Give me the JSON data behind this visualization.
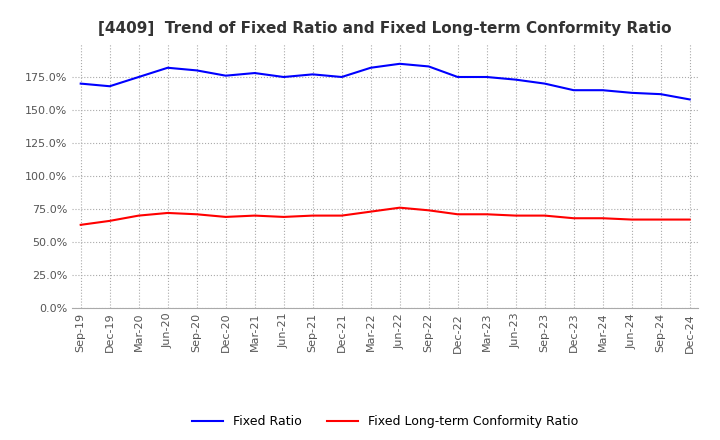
{
  "title": "[4409]  Trend of Fixed Ratio and Fixed Long-term Conformity Ratio",
  "x_labels": [
    "Sep-19",
    "Dec-19",
    "Mar-20",
    "Jun-20",
    "Sep-20",
    "Dec-20",
    "Mar-21",
    "Jun-21",
    "Sep-21",
    "Dec-21",
    "Mar-22",
    "Jun-22",
    "Sep-22",
    "Dec-22",
    "Mar-23",
    "Jun-23",
    "Sep-23",
    "Dec-23",
    "Mar-24",
    "Jun-24",
    "Sep-24",
    "Dec-24"
  ],
  "fixed_ratio": [
    170,
    168,
    175,
    182,
    180,
    176,
    178,
    175,
    177,
    175,
    182,
    185,
    183,
    175,
    175,
    173,
    170,
    165,
    165,
    163,
    162,
    158
  ],
  "fixed_lt_ratio": [
    63,
    66,
    70,
    72,
    71,
    69,
    70,
    69,
    70,
    70,
    73,
    76,
    74,
    71,
    71,
    70,
    70,
    68,
    68,
    67,
    67,
    67
  ],
  "fixed_ratio_color": "#0000FF",
  "fixed_lt_ratio_color": "#FF0000",
  "ylim": [
    0,
    200
  ],
  "yticks": [
    0,
    25,
    50,
    75,
    100,
    125,
    150,
    175
  ],
  "title_fontsize": 11,
  "legend_fontsize": 9,
  "tick_fontsize": 8,
  "background_color": "#ffffff",
  "grid_color": "#aaaaaa"
}
